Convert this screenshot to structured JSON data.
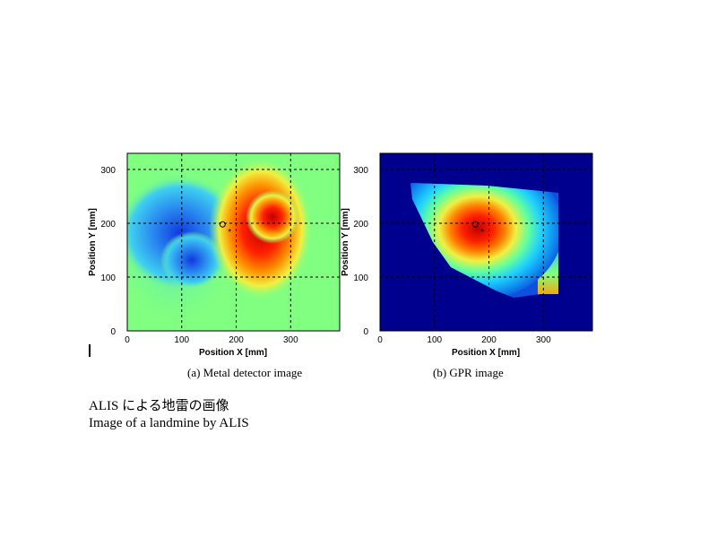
{
  "chart_data": [
    {
      "type": "heatmap",
      "caption": "(a) Metal detector image",
      "xlabel": "Position X [mm]",
      "ylabel": "Position Y [mm]",
      "xlim": [
        0,
        390
      ],
      "ylim": [
        0,
        330
      ],
      "xticks": [
        0,
        100,
        200,
        300
      ],
      "yticks": [
        0,
        100,
        200,
        300
      ],
      "grid": true,
      "colormap": "jet",
      "background_color": "#80ff80",
      "markers": [
        {
          "symbol": "o",
          "x": 175,
          "y": 198
        },
        {
          "symbol": "*",
          "x": 188,
          "y": 188
        }
      ]
    },
    {
      "type": "heatmap",
      "caption": "(b) GPR image",
      "xlabel": "Position X [mm]",
      "ylabel": "Position Y [mm]",
      "xlim": [
        0,
        390
      ],
      "ylim": [
        0,
        330
      ],
      "xticks": [
        0,
        100,
        200,
        300
      ],
      "yticks": [
        0,
        100,
        200,
        300
      ],
      "grid": true,
      "colormap": "jet",
      "background_color": "#00008f",
      "markers": [
        {
          "symbol": "o",
          "x": 175,
          "y": 198
        },
        {
          "symbol": "*",
          "x": 188,
          "y": 188
        }
      ]
    }
  ],
  "title_jp": "ALIS による地雷の画像",
  "title_en": "Image of a landmine by ALIS"
}
